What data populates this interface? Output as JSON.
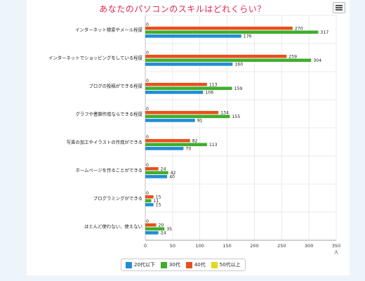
{
  "chart_data": {
    "type": "bar",
    "orientation": "horizontal",
    "title": "あなたのパソコンのスキルはどれくらい？",
    "xlabel": "人",
    "xlim": [
      0,
      350
    ],
    "xticks": [
      0,
      50,
      100,
      150,
      200,
      250,
      300,
      350
    ],
    "grid": true,
    "legend_position": "bottom",
    "categories": [
      "インターネット検索やメール程度",
      "インターネットでショッピングをしている程度",
      "ブログの投稿ができる程度",
      "グラフや書類作成ならできる程度",
      "写真の加工やイラストの作成ができる",
      "ホームページを作ることができる",
      "プログラミングができる",
      "ほとんど使わない、使えない"
    ],
    "series": [
      {
        "name": "20代以下",
        "color": "#1f8dd6",
        "values": [
          176,
          160,
          106,
          91,
          70,
          40,
          15,
          24
        ]
      },
      {
        "name": "30代",
        "color": "#3fae2a",
        "values": [
          317,
          304,
          159,
          155,
          113,
          42,
          11,
          35
        ]
      },
      {
        "name": "40代",
        "color": "#e8501d",
        "values": [
          270,
          259,
          113,
          134,
          82,
          24,
          15,
          20
        ]
      },
      {
        "name": "50代以上",
        "color": "#e0d91c",
        "values": [
          0,
          0,
          0,
          0,
          0,
          0,
          0,
          0
        ]
      }
    ]
  }
}
